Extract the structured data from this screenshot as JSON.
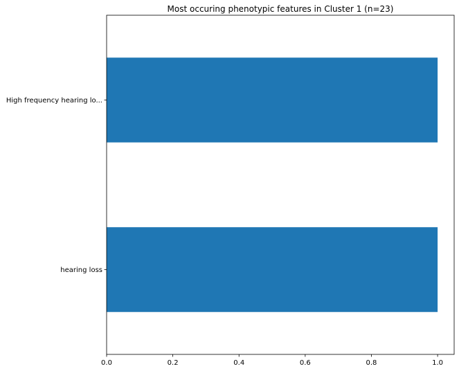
{
  "chart_data": {
    "type": "bar",
    "orientation": "horizontal",
    "title": "Most occuring phenotypic features in Cluster 1 (n=23)",
    "xlabel": "",
    "ylabel": "",
    "categories": [
      "High frequency hearing lo...",
      "hearing loss"
    ],
    "values": [
      1.0,
      1.0
    ],
    "xlim": [
      0,
      1.05
    ],
    "xticks": [
      0.0,
      0.2,
      0.4,
      0.6,
      0.8,
      1.0
    ],
    "xtick_labels": [
      "0.0",
      "0.2",
      "0.4",
      "0.6",
      "0.8",
      "1.0"
    ],
    "bar_color": "#1f77b4",
    "grid": false,
    "legend": "none"
  }
}
